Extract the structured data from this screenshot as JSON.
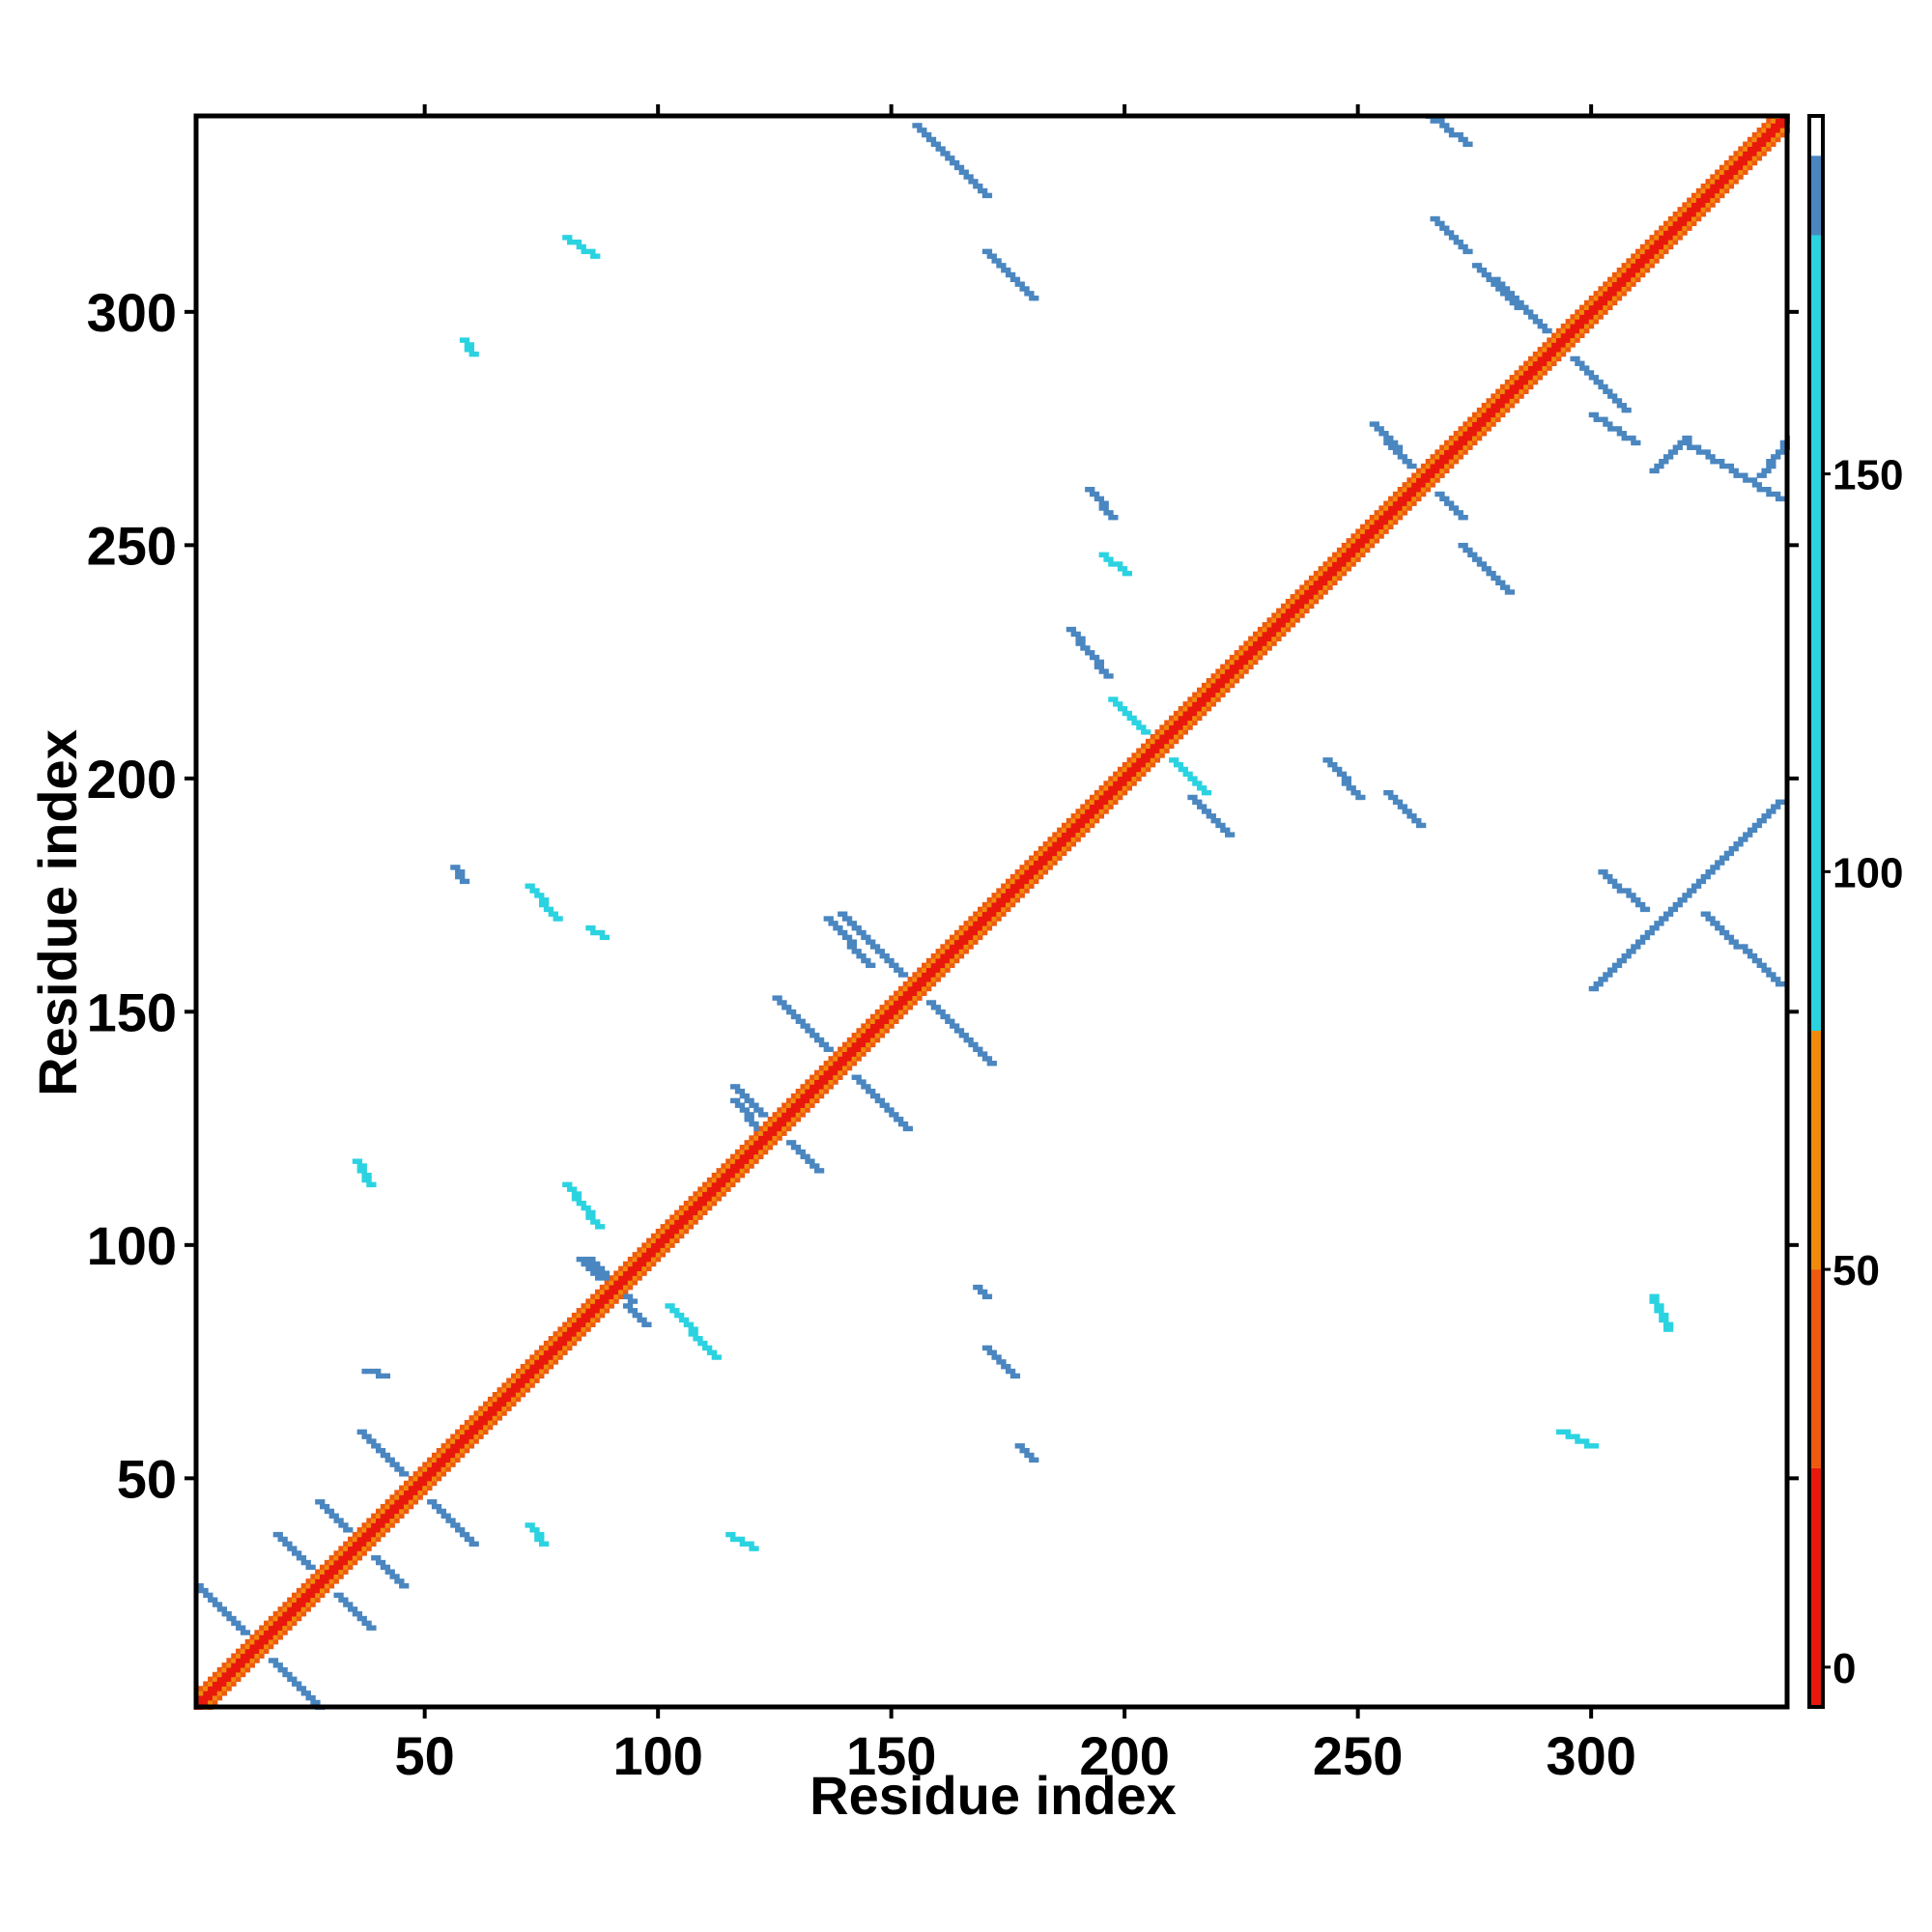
{
  "chart_data": {
    "type": "heatmap",
    "title": "",
    "xlabel": "Residue index",
    "ylabel": "Residue index",
    "xlim": [
      1,
      342
    ],
    "ylim": [
      1,
      342
    ],
    "x_ticks": [
      "50",
      "100",
      "150",
      "200",
      "250",
      "300"
    ],
    "y_ticks": [
      "50",
      "100",
      "150",
      "200",
      "250",
      "300"
    ],
    "colorbar": {
      "ticks": [
        "0",
        "50",
        "100",
        "150"
      ],
      "range": [
        -5,
        195
      ],
      "bands": [
        {
          "from": -5,
          "to": 25,
          "color": "#e8180c"
        },
        {
          "from": 25,
          "to": 50,
          "color": "#ee5a0f"
        },
        {
          "from": 50,
          "to": 80,
          "color": "#f08a0b"
        },
        {
          "from": 80,
          "to": 180,
          "color": "#2bd3e1"
        },
        {
          "from": 180,
          "to": 190,
          "color": "#4a86c0"
        },
        {
          "from": 190,
          "to": 195,
          "color": "#ffffff"
        }
      ]
    },
    "colors": {
      "red": "#e8180c",
      "orange_red": "#ee5a0f",
      "orange": "#f08a0b",
      "cyan": "#2bd3e1",
      "steel_blue": "#4a86c0"
    },
    "features": {
      "diagonal": {
        "from": 1,
        "to": 342
      },
      "anti_parallel_contacts": [
        {
          "center": [
            14,
            14
          ],
          "half_length": 13,
          "value": 185
        },
        {
          "center": [
            28,
            28
          ],
          "half_length": 10,
          "value": 185
        },
        {
          "center": [
            36,
            36
          ],
          "half_length": 9,
          "value": 185
        },
        {
          "center": [
            48,
            48
          ],
          "half_length": 12,
          "value": 185
        },
        {
          "center": [
            90,
            90
          ],
          "half_length": 7,
          "value": 185
        },
        {
          "center": [
            125,
            125
          ],
          "half_length": 9,
          "value": 185
        },
        {
          "center": [
            139,
            139
          ],
          "half_length": 14,
          "value": 185
        },
        {
          "center": [
            155,
            155
          ],
          "half_length": 16,
          "value": 185
        },
        {
          "center": [
            207,
            207
          ],
          "half_length": 10,
          "value": 120
        },
        {
          "center": [
            264,
            264
          ],
          "half_length": 8,
          "value": 185
        },
        {
          "center": [
            293,
            293
          ],
          "half_length": 14,
          "value": 185
        }
      ],
      "off_diagonal_contacts": [
        {
          "start": [
            155,
            340
          ],
          "end": [
            170,
            325
          ],
          "value": 185
        },
        {
          "start": [
            300,
            155
          ],
          "end": [
            340,
            195
          ],
          "value": 185
        },
        {
          "start": [
            170,
            313
          ],
          "end": [
            180,
            303
          ],
          "value": 185
        },
        {
          "start": [
            266,
            320
          ],
          "end": [
            273,
            313
          ],
          "value": 185
        },
        {
          "start": [
            313,
            266
          ],
          "end": [
            320,
            273
          ],
          "value": 185
        },
        {
          "start": [
            265,
            342
          ],
          "end": [
            273,
            336
          ],
          "value": 185
        },
        {
          "start": [
            336,
            265
          ],
          "end": [
            342,
            273
          ],
          "value": 185
        },
        {
          "start": [
            275,
            310
          ],
          "end": [
            284,
            301
          ],
          "value": 185
        },
        {
          "start": [
            300,
            278
          ],
          "end": [
            309,
            272
          ],
          "value": 185
        },
        {
          "start": [
            320,
            272
          ],
          "end": [
            340,
            260
          ],
          "value": 185
        },
        {
          "start": [
            253,
            276
          ],
          "end": [
            258,
            271
          ],
          "value": 185
        },
        {
          "start": [
            192,
            262
          ],
          "end": [
            197,
            256
          ],
          "value": 185
        },
        {
          "start": [
            195,
            248
          ],
          "end": [
            200,
            244
          ],
          "value": 120
        },
        {
          "start": [
            188,
            232
          ],
          "end": [
            196,
            222
          ],
          "value": 185
        },
        {
          "start": [
            272,
            250
          ],
          "end": [
            282,
            240
          ],
          "value": 185
        },
        {
          "start": [
            214,
            196
          ],
          "end": [
            222,
            188
          ],
          "value": 185
        },
        {
          "start": [
            243,
            204
          ],
          "end": [
            250,
            196
          ],
          "value": 185
        },
        {
          "start": [
            256,
            197
          ],
          "end": [
            263,
            190
          ],
          "value": 185
        },
        {
          "start": [
            302,
            180
          ],
          "end": [
            311,
            172
          ],
          "value": 185
        },
        {
          "start": [
            324,
            171
          ],
          "end": [
            340,
            156
          ],
          "value": 185
        },
        {
          "start": [
            56,
            181
          ],
          "end": [
            58,
            178
          ],
          "value": 185
        },
        {
          "start": [
            72,
            177
          ],
          "end": [
            78,
            170
          ],
          "value": 120
        },
        {
          "start": [
            85,
            168
          ],
          "end": [
            88,
            166
          ],
          "value": 120
        },
        {
          "start": [
            136,
            170
          ],
          "end": [
            145,
            160
          ],
          "value": 185
        },
        {
          "start": [
            116,
            131
          ],
          "end": [
            122,
            124
          ],
          "value": 185
        },
        {
          "start": [
            80,
            113
          ],
          "end": [
            87,
            104
          ],
          "value": 120
        },
        {
          "start": [
            85,
            97
          ],
          "end": [
            94,
            88
          ],
          "value": 185
        },
        {
          "start": [
            102,
            87
          ],
          "end": [
            112,
            76
          ],
          "value": 120
        },
        {
          "start": [
            35,
            118
          ],
          "end": [
            38,
            113
          ],
          "value": 120
        },
        {
          "start": [
            37,
            73
          ],
          "end": [
            41,
            72
          ],
          "value": 185
        },
        {
          "start": [
            170,
            78
          ],
          "end": [
            176,
            72
          ],
          "value": 185
        },
        {
          "start": [
            177,
            57
          ],
          "end": [
            180,
            54
          ],
          "value": 185
        },
        {
          "start": [
            168,
            91
          ],
          "end": [
            170,
            89
          ],
          "value": 185
        },
        {
          "start": [
            80,
            316
          ],
          "end": [
            86,
            312
          ],
          "value": 120
        },
        {
          "start": [
            58,
            294
          ],
          "end": [
            60,
            291
          ],
          "value": 120
        },
        {
          "start": [
            115,
            38
          ],
          "end": [
            120,
            35
          ],
          "value": 120
        },
        {
          "start": [
            72,
            40
          ],
          "end": [
            75,
            36
          ],
          "value": 120
        },
        {
          "start": [
            313,
            89
          ],
          "end": [
            316,
            82
          ],
          "value": 120
        },
        {
          "start": [
            293,
            60
          ],
          "end": [
            300,
            57
          ],
          "value": 120
        }
      ]
    }
  }
}
